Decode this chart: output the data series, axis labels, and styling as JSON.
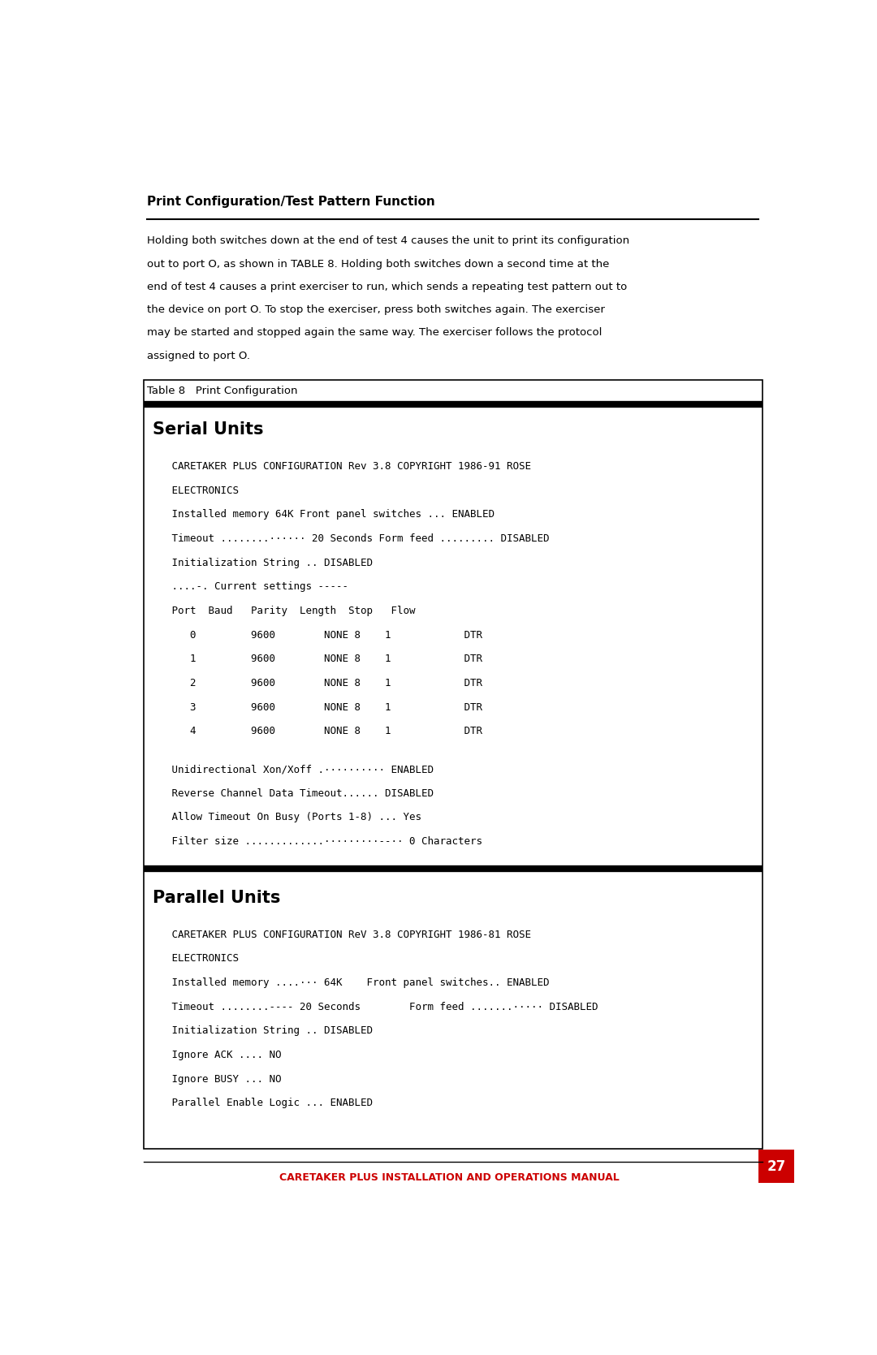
{
  "bg_color": "#ffffff",
  "text_color": "#000000",
  "red_color": "#cc0000",
  "page_number": "27",
  "section_heading": "Print Configuration/Test Pattern Function",
  "intro_lines": [
    "Holding both switches down at the end of test 4 causes the unit to print its configuration",
    "out to port O, as shown in TABLE 8. Holding both switches down a second time at the",
    "end of test 4 causes a print exerciser to run, which sends a repeating test pattern out to",
    "the device on port O. To stop the exerciser, press both switches again. The exerciser",
    "may be started and stopped again the same way. The exerciser follows the protocol",
    "assigned to port O."
  ],
  "table_label": "Table 8   Print Configuration",
  "serial_heading": "Serial Units",
  "serial_lines": [
    "   CARETAKER PLUS CONFIGURATION Rev 3.8 COPYRIGHT 1986-91 ROSE",
    "   ELECTRONICS",
    "   Installed memory 64K Front panel switches ... ENABLED",
    "   Timeout ........······ 20 Seconds Form feed ......... DISABLED",
    "   Initialization String .. DISABLED",
    "   ....-. Current settings -----",
    "   Port  Baud   Parity  Length  Stop   Flow",
    "      0         9600        NONE 8    1            DTR",
    "      1         9600        NONE 8    1            DTR",
    "      2         9600        NONE 8    1            DTR",
    "      3         9600        NONE 8    1            DTR",
    "      4         9600        NONE 8    1            DTR",
    "",
    "   Unidirectional Xon/Xoff .·········· ENABLED",
    "   Reverse Channel Data Timeout...... DISABLED",
    "   Allow Timeout On Busy (Ports 1-8) ... Yes",
    "   Filter size .............·········--·· 0 Characters"
  ],
  "parallel_heading": "Parallel Units",
  "parallel_lines": [
    "   CARETAKER PLUS CONFIGURATION ReV 3.8 COPYRIGHT 1986-81 ROSE",
    "   ELECTRONICS",
    "   Installed memory ....··· 64K    Front panel switches.. ENABLED",
    "   Timeout ........---- 20 Seconds        Form feed .......····· DISABLED",
    "   Initialization String .. DISABLED",
    "   Ignore ACK .... NO",
    "   Ignore BUSY ... NO",
    "   Parallel Enable Logic ... ENABLED"
  ],
  "footer_text": "CARETAKER PLUS INSTALLATION AND OPERATIONS MANUAL"
}
